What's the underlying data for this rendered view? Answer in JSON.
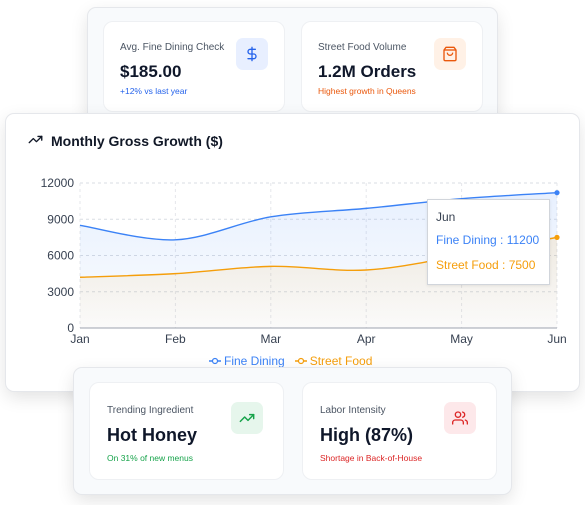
{
  "top_metrics": [
    {
      "label": "Avg. Fine Dining Check",
      "value": "$185.00",
      "sub": "+12% vs last year",
      "icon": "dollar-icon",
      "color": "#2563eb",
      "bg": "#e8efff"
    },
    {
      "label": "Street Food Volume",
      "value": "1.2M Orders",
      "sub": "Highest growth in Queens",
      "icon": "shopping-bag-icon",
      "color": "#ea580c",
      "bg": "#fff1e6"
    }
  ],
  "chart": {
    "title": "Monthly Gross Growth ($)",
    "icon": "trending-up-icon",
    "legend": [
      "Fine Dining",
      "Street Food"
    ],
    "tooltip": {
      "month": "Jun",
      "fine": "Fine Dining : 11200",
      "street": "Street Food : 7500"
    }
  },
  "chart_data": {
    "type": "area",
    "title": "Monthly Gross Growth ($)",
    "categories": [
      "Jan",
      "Feb",
      "Mar",
      "Apr",
      "May",
      "Jun"
    ],
    "yticks": [
      "0",
      "3000",
      "6000",
      "9000",
      "12000"
    ],
    "ylim": [
      0,
      12000
    ],
    "grid": true,
    "legend_position": "bottom",
    "series": [
      {
        "name": "Fine Dining",
        "color": "#3b82f6",
        "values": [
          8500,
          7300,
          9200,
          9900,
          10700,
          11200
        ]
      },
      {
        "name": "Street Food",
        "color": "#f59e0b",
        "values": [
          4200,
          4500,
          5100,
          4800,
          6000,
          7500
        ]
      }
    ]
  },
  "bottom_metrics": [
    {
      "label": "Trending Ingredient",
      "value": "Hot Honey",
      "sub": "On 31% of new menus",
      "icon": "trending-up-icon",
      "color": "#16a34a",
      "bg": "#e6f6ec"
    },
    {
      "label": "Labor Intensity",
      "value": "High (87%)",
      "sub": "Shortage in Back-of-House",
      "icon": "users-icon",
      "color": "#dc2626",
      "bg": "#fde8ea"
    }
  ]
}
